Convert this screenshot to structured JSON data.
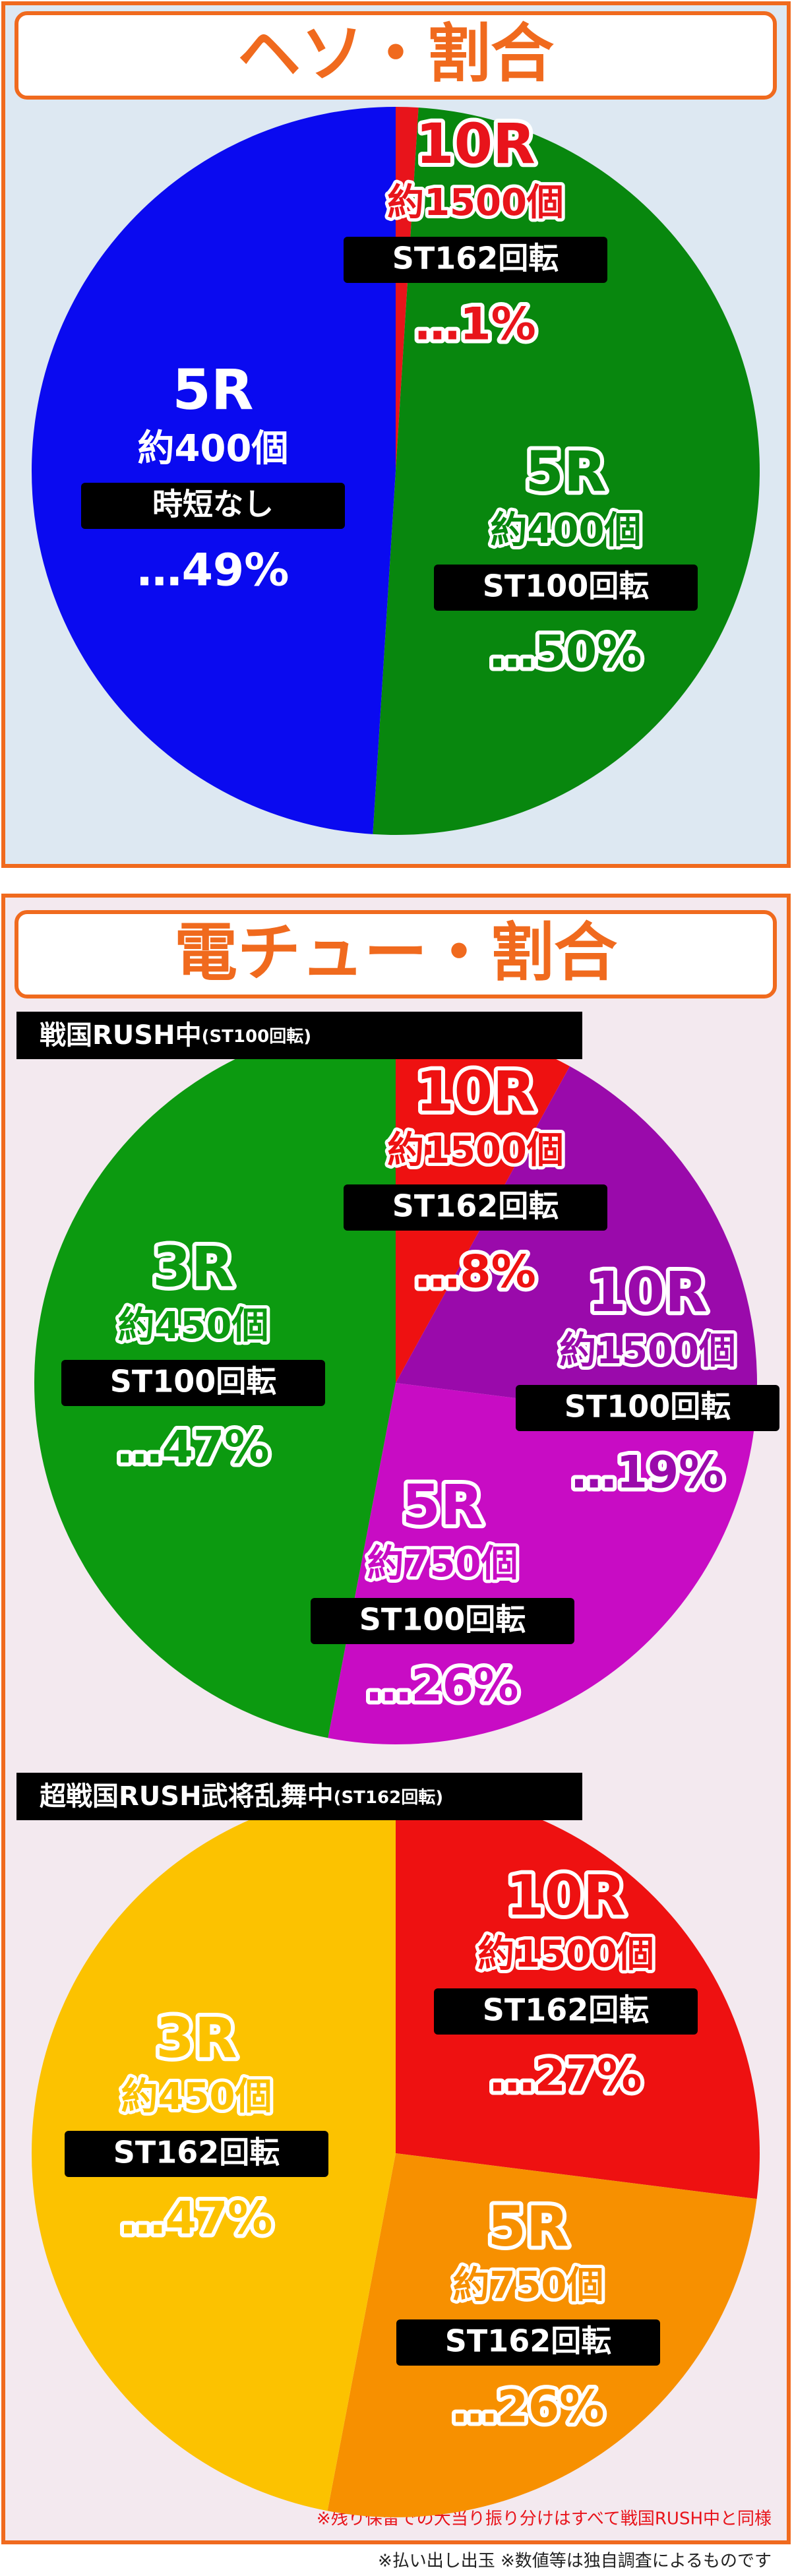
{
  "chart_data": [
    {
      "type": "pie",
      "title": "ヘソ・割合",
      "categories": [
        "10R",
        "5R",
        "5R"
      ],
      "counts": [
        "約1500個",
        "約400個",
        "約400個"
      ],
      "durations": [
        "ST162回転",
        "ST100回転",
        "時短なし"
      ],
      "values": [
        1,
        50,
        49
      ],
      "value_labels": [
        "…1%",
        "…50%",
        "…49%"
      ],
      "colors": [
        "#e8141b",
        "#08870e",
        "#0a0af0"
      ],
      "text_colors": [
        "#e8141b",
        "#08870e",
        "#ffffff"
      ],
      "outline_colors": [
        "#ffffff",
        "#ffffff",
        "#0a0af0"
      ]
    },
    {
      "type": "pie",
      "title": "電チュー・割合",
      "subtitle": "戦国RUSH中",
      "subtitle_note": "(ST100回転)",
      "categories": [
        "10R",
        "10R",
        "5R",
        "3R"
      ],
      "counts": [
        "約1500個",
        "約1500個",
        "約750個",
        "約450個"
      ],
      "durations": [
        "ST162回転",
        "ST100回転",
        "ST100回転",
        "ST100回転"
      ],
      "values": [
        8,
        19,
        26,
        47
      ],
      "value_labels": [
        "…8%",
        "…19%",
        "…26%",
        "…47%"
      ],
      "colors": [
        "#ee1111",
        "#9a0aab",
        "#c80cc4",
        "#0c9a10"
      ],
      "text_colors": [
        "#ee1111",
        "#9a0aab",
        "#c80cc4",
        "#0c9a10"
      ],
      "outline_colors": [
        "#ffffff",
        "#ffffff",
        "#ffffff",
        "#ffffff"
      ]
    },
    {
      "type": "pie",
      "subtitle": "超戦国RUSH武将乱舞中",
      "subtitle_note": "(ST162回転)",
      "categories": [
        "10R",
        "5R",
        "3R"
      ],
      "counts": [
        "約1500個",
        "約750個",
        "約450個"
      ],
      "durations": [
        "ST162回転",
        "ST162回転",
        "ST162回転"
      ],
      "values": [
        27,
        26,
        47
      ],
      "value_labels": [
        "…27%",
        "…26%",
        "…47%"
      ],
      "colors": [
        "#ee1111",
        "#f79000",
        "#fcc200"
      ],
      "text_colors": [
        "#ee1111",
        "#f79000",
        "#fcc200"
      ],
      "outline_colors": [
        "#ffffff",
        "#ffffff",
        "#ffffff"
      ]
    }
  ],
  "notes": [
    "※残り保留での大当り振り分けはすべて戦国RUSH中と同様",
    "※払い出し出玉 ※数値等は独自調査によるものです"
  ]
}
